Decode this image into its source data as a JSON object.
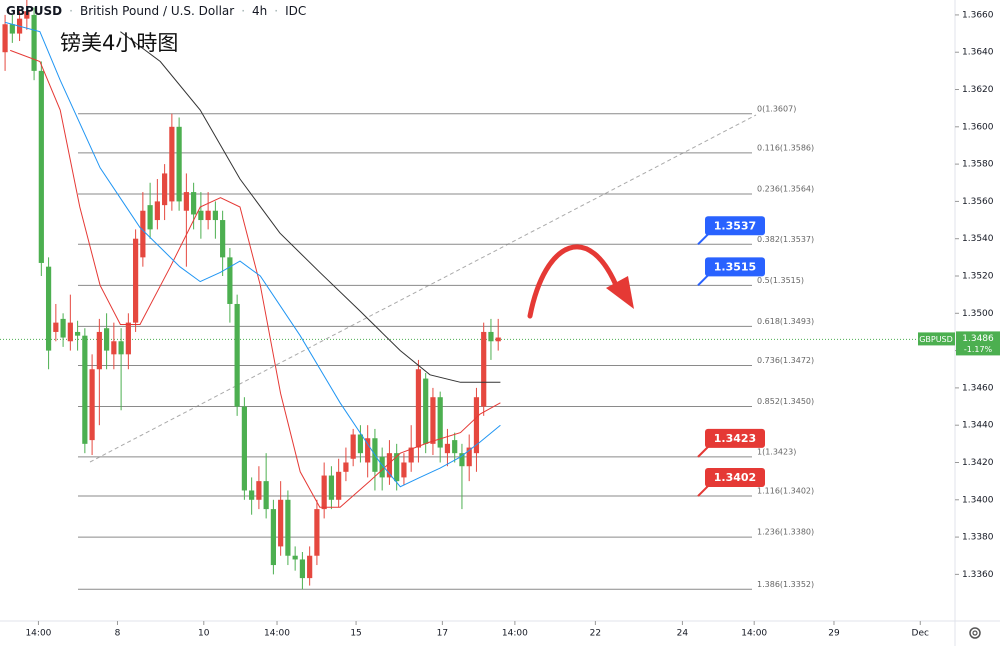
{
  "chart_data": {
    "type": "candlestick",
    "symbol": "GBPUSD",
    "name": "British Pound / U.S. Dollar",
    "interval": "4h",
    "source": "IDC",
    "annotation": "镑美4小時图",
    "up_color": "#e5483f",
    "down_color": "#4caf50",
    "ylim": [
      1.3335,
      1.3668
    ],
    "xlim": [
      -0.7,
      130.3
    ],
    "yticks": [
      {
        "value": 1.366,
        "label": "1.3660"
      },
      {
        "value": 1.364,
        "label": "1.3640"
      },
      {
        "value": 1.362,
        "label": "1.3620"
      },
      {
        "value": 1.36,
        "label": "1.3600"
      },
      {
        "value": 1.358,
        "label": "1.3580"
      },
      {
        "value": 1.356,
        "label": "1.3560"
      },
      {
        "value": 1.354,
        "label": "1.3540"
      },
      {
        "value": 1.352,
        "label": "1.3520"
      },
      {
        "value": 1.35,
        "label": "1.3500"
      },
      {
        "value": 1.348,
        "label": "1.3480"
      },
      {
        "value": 1.346,
        "label": "1.3460"
      },
      {
        "value": 1.344,
        "label": "1.3440"
      },
      {
        "value": 1.342,
        "label": "1.3420"
      },
      {
        "value": 1.34,
        "label": "1.3400"
      },
      {
        "value": 1.338,
        "label": "1.3380"
      },
      {
        "value": 1.336,
        "label": "1.3360"
      }
    ],
    "xticks": [
      {
        "value": 4.6,
        "label": "14:00"
      },
      {
        "value": 15.5,
        "label": "8"
      },
      {
        "value": 27.4,
        "label": "10"
      },
      {
        "value": 37.5,
        "label": "14:00"
      },
      {
        "value": 48.4,
        "label": "15"
      },
      {
        "value": 60.3,
        "label": "17"
      },
      {
        "value": 70.3,
        "label": "14:00"
      },
      {
        "value": 81.4,
        "label": "22"
      },
      {
        "value": 93.4,
        "label": "24"
      },
      {
        "value": 103.3,
        "label": "14:00"
      },
      {
        "value": 114.3,
        "label": "29"
      },
      {
        "value": 126.2,
        "label": "Dec"
      }
    ],
    "open": [
      1.364,
      1.3655,
      1.365,
      1.3658,
      1.366,
      1.363,
      1.3525,
      1.349,
      1.3497,
      1.3485,
      1.349,
      1.3488,
      1.3432,
      1.347,
      1.3492,
      1.3478,
      1.3485,
      1.3478,
      1.3495,
      1.353,
      1.3558,
      1.355,
      1.3558,
      1.356,
      1.36,
      1.3555,
      1.3565,
      1.3555,
      1.355,
      1.3555,
      1.355,
      1.353,
      1.3505,
      1.345,
      1.3405,
      1.34,
      1.341,
      1.3395,
      1.3375,
      1.34,
      1.337,
      1.3368,
      1.3358,
      1.337,
      1.3395,
      1.3413,
      1.34,
      1.3415,
      1.3422,
      1.3435,
      1.342,
      1.3433,
      1.3423,
      1.3412,
      1.3425,
      1.3412,
      1.342,
      1.3428,
      1.3465,
      1.343,
      1.3455,
      1.3425,
      1.3432,
      1.3425,
      1.3418,
      1.3425,
      1.345,
      1.349,
      1.3485
    ],
    "high": [
      1.366,
      1.366,
      1.3662,
      1.3668,
      1.3664,
      1.3635,
      1.353,
      1.3505,
      1.35,
      1.351,
      1.3496,
      1.3492,
      1.3478,
      1.3497,
      1.35,
      1.3495,
      1.3492,
      1.35,
      1.3545,
      1.3565,
      1.357,
      1.3572,
      1.358,
      1.3607,
      1.3605,
      1.3575,
      1.357,
      1.3565,
      1.3565,
      1.356,
      1.3555,
      1.3535,
      1.351,
      1.3455,
      1.3412,
      1.3418,
      1.3425,
      1.34,
      1.341,
      1.3405,
      1.3375,
      1.3372,
      1.3375,
      1.34,
      1.342,
      1.3418,
      1.3422,
      1.3428,
      1.3438,
      1.344,
      1.344,
      1.3438,
      1.3428,
      1.3432,
      1.343,
      1.3425,
      1.344,
      1.3475,
      1.3468,
      1.346,
      1.3458,
      1.3438,
      1.3436,
      1.343,
      1.3435,
      1.346,
      1.3495,
      1.3497,
      1.3497
    ],
    "low": [
      1.363,
      1.3645,
      1.3646,
      1.3652,
      1.3625,
      1.352,
      1.347,
      1.3485,
      1.3482,
      1.348,
      1.348,
      1.3425,
      1.3424,
      1.344,
      1.347,
      1.347,
      1.3448,
      1.347,
      1.349,
      1.3525,
      1.354,
      1.3545,
      1.355,
      1.3555,
      1.3555,
      1.3525,
      1.3545,
      1.354,
      1.3545,
      1.354,
      1.352,
      1.3495,
      1.3445,
      1.34,
      1.3392,
      1.3395,
      1.339,
      1.336,
      1.337,
      1.3365,
      1.3362,
      1.3352,
      1.3354,
      1.3365,
      1.339,
      1.3395,
      1.3396,
      1.341,
      1.3418,
      1.342,
      1.3412,
      1.3405,
      1.3405,
      1.3408,
      1.3405,
      1.3408,
      1.3415,
      1.342,
      1.3425,
      1.3424,
      1.342,
      1.3418,
      1.342,
      1.3395,
      1.341,
      1.3415,
      1.3445,
      1.3475,
      1.348
    ],
    "close": [
      1.3655,
      1.365,
      1.3658,
      1.3662,
      1.363,
      1.3527,
      1.348,
      1.3495,
      1.3487,
      1.3495,
      1.3488,
      1.343,
      1.347,
      1.349,
      1.348,
      1.3485,
      1.3478,
      1.3495,
      1.354,
      1.3555,
      1.3545,
      1.356,
      1.3575,
      1.36,
      1.356,
      1.3565,
      1.3553,
      1.355,
      1.3555,
      1.355,
      1.353,
      1.3505,
      1.345,
      1.3405,
      1.34,
      1.341,
      1.3395,
      1.3365,
      1.34,
      1.337,
      1.3368,
      1.3358,
      1.337,
      1.3395,
      1.3413,
      1.34,
      1.3415,
      1.342,
      1.3435,
      1.3425,
      1.3433,
      1.3415,
      1.3412,
      1.3425,
      1.341,
      1.342,
      1.3428,
      1.347,
      1.343,
      1.3455,
      1.3428,
      1.343,
      1.3425,
      1.3418,
      1.3428,
      1.3455,
      1.349,
      1.3485,
      1.3487
    ],
    "ma_lines": [
      {
        "color": "#e53935",
        "x": [
          0.7,
          4.8,
          7.6,
          10.3,
          13.1,
          15.9,
          18.6,
          22.8,
          26.9,
          29.7,
          32.4,
          35.2,
          38,
          40.7,
          43.4,
          46.2,
          50.3,
          54.5,
          58.6,
          62.8,
          65.5,
          68.3
        ],
        "values": [
          1.3641,
          1.3635,
          1.3609,
          1.3557,
          1.3515,
          1.3494,
          1.3494,
          1.3525,
          1.3557,
          1.3562,
          1.3557,
          1.3515,
          1.3457,
          1.3415,
          1.3396,
          1.3396,
          1.341,
          1.3425,
          1.3431,
          1.3436,
          1.3446,
          1.3452
        ]
      },
      {
        "color": "#2196f3",
        "x": [
          0,
          4.8,
          7.6,
          13.1,
          18.6,
          24.1,
          26.9,
          29.7,
          32.4,
          35.2,
          40.7,
          46.2,
          51.7,
          54.5,
          57.2,
          60,
          62.8,
          65.5,
          68.3
        ],
        "values": [
          1.3656,
          1.3651,
          1.3625,
          1.3578,
          1.3546,
          1.3525,
          1.3517,
          1.3522,
          1.3528,
          1.352,
          1.3488,
          1.3452,
          1.342,
          1.3407,
          1.3412,
          1.3417,
          1.3423,
          1.3431,
          1.344
        ]
      },
      {
        "color": "#333333",
        "x": [
          15.9,
          21.4,
          26.9,
          32.4,
          37.9,
          43.4,
          49,
          54.5,
          58.6,
          62.8,
          68.3
        ],
        "values": [
          1.3651,
          1.3635,
          1.3609,
          1.3572,
          1.3543,
          1.3522,
          1.3501,
          1.348,
          1.3467,
          1.3463,
          1.3463
        ]
      }
    ],
    "fib_levels": [
      {
        "label": "0(1.3607)",
        "value": 1.3607
      },
      {
        "label": "0.116(1.3586)",
        "value": 1.3586
      },
      {
        "label": "0.236(1.3564)",
        "value": 1.3564
      },
      {
        "label": "0.382(1.3537)",
        "value": 1.3537
      },
      {
        "label": "0.5(1.3515)",
        "value": 1.3515
      },
      {
        "label": "0.618(1.3493)",
        "value": 1.3493
      },
      {
        "label": "0.736(1.3472)",
        "value": 1.3472
      },
      {
        "label": "0.852(1.3450)",
        "value": 1.345
      },
      {
        "label": "1(1.3423)",
        "value": 1.3423
      },
      {
        "label": "1.116(1.3402)",
        "value": 1.3402
      },
      {
        "label": "1.236(1.3380)",
        "value": 1.338
      },
      {
        "label": "1.386(1.3352)",
        "value": 1.3352
      }
    ],
    "price_tags": [
      {
        "label": "1.3537",
        "value": 1.3537,
        "color": "#2962ff"
      },
      {
        "label": "1.3515",
        "value": 1.3515,
        "color": "#2962ff"
      },
      {
        "label": "1.3423",
        "value": 1.3423,
        "color": "#e53935"
      },
      {
        "label": "1.3402",
        "value": 1.3402,
        "color": "#e53935"
      }
    ],
    "last_price": {
      "value": 1.3486,
      "label": "1.3486",
      "change": "-1.17%",
      "color": "#4caf50"
    }
  }
}
